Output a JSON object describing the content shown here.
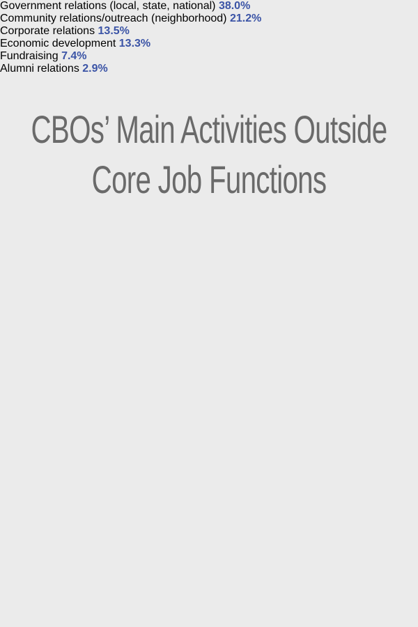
{
  "chart_data": {
    "type": "bar",
    "orientation": "horizontal",
    "title": "CBOs’ Main Activities Outside Core Job Functions",
    "categories": [
      "Government relations (local, state, national)",
      "Community relations/outreach (neighborhood)",
      "Corporate relations",
      "Economic development",
      "Fundraising",
      "Alumni relations"
    ],
    "values": [
      38.0,
      21.2,
      13.5,
      13.3,
      7.4,
      2.9
    ],
    "value_labels": [
      "38.0%",
      "21.2%",
      "13.5%",
      "13.3%",
      "7.4%",
      "2.9%"
    ],
    "color": "#3b54a6"
  }
}
